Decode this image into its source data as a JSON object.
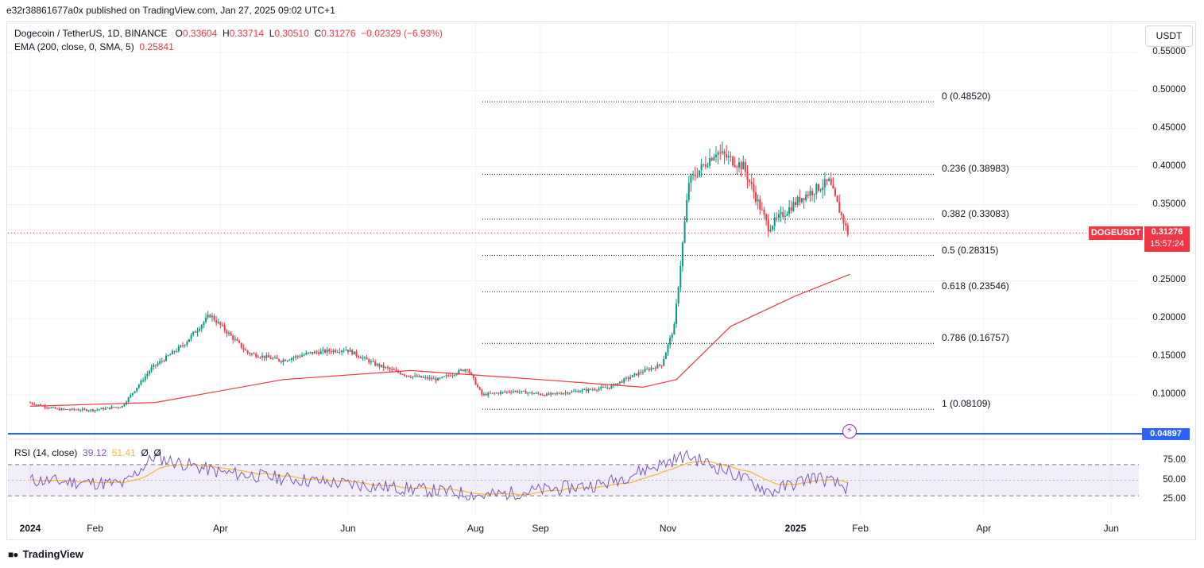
{
  "header": {
    "published_text": "e32r38861677a0x published on TradingView.com, Jan 27, 2025 09:02 UTC+1"
  },
  "legend": {
    "symbol": "Dogecoin / TetherUS, 1D, BINANCE",
    "o_label": "O",
    "o": "0.33604",
    "h_label": "H",
    "h": "0.33714",
    "l_label": "L",
    "l": "0.30510",
    "c_label": "C",
    "c": "0.31276",
    "change": "−0.02329 (−6.93%)",
    "ema_label": "EMA (200, close, 0, SMA, 5)",
    "ema_value": "0.25841"
  },
  "rsi_legend": {
    "label": "RSI (14, close)",
    "rsi": "39.12",
    "ma": "51.41",
    "extra": "Ø",
    "extra2": "Ø"
  },
  "currency": "USDT",
  "last_price": {
    "ticker": "DOGEUSDT",
    "price": "0.31276",
    "countdown": "15:57:24"
  },
  "hline_value": "0.04897",
  "price_axis": [
    "0.55000",
    "0.50000",
    "0.45000",
    "0.40000",
    "0.35000",
    "0.25000",
    "0.20000",
    "0.15000",
    "0.10000"
  ],
  "rsi_axis": [
    "75.00",
    "50.00",
    "25.00"
  ],
  "time_axis": [
    "2024",
    "Feb",
    "Apr",
    "Jun",
    "Aug",
    "Sep",
    "Nov",
    "2025",
    "Feb",
    "Apr",
    "Jun"
  ],
  "fib_levels": [
    {
      "label": "0 (0.48520)",
      "value": 0.4852
    },
    {
      "label": "0.236 (0.38983)",
      "value": 0.38983
    },
    {
      "label": "0.382 (0.33083)",
      "value": 0.33083
    },
    {
      "label": "0.5 (0.28315)",
      "value": 0.28315
    },
    {
      "label": "0.618 (0.23546)",
      "value": 0.23546
    },
    {
      "label": "0.786 (0.16757)",
      "value": 0.16757
    },
    {
      "label": "1 (0.08109)",
      "value": 0.08109
    }
  ],
  "brand": "TradingView",
  "colors": {
    "up": "#089981",
    "down": "#f23645",
    "ema": "#f23645",
    "rsi": "#7e57c2",
    "rsi_ma": "#f7b731",
    "hline": "#2962ff",
    "fib": "#131722"
  },
  "chart_data": {
    "type": "candlestick",
    "ylim": [
      0.045,
      0.57
    ],
    "series": [
      {
        "name": "Dogecoin / TetherUS",
        "dates": [
          "2024-01-01",
          "2024-01-15",
          "2024-02-01",
          "2024-02-15",
          "2024-02-29",
          "2024-03-15",
          "2024-03-28",
          "2024-04-15",
          "2024-05-01",
          "2024-05-15",
          "2024-06-01",
          "2024-06-15",
          "2024-07-01",
          "2024-07-15",
          "2024-07-29",
          "2024-08-05",
          "2024-08-20",
          "2024-09-05",
          "2024-09-20",
          "2024-10-05",
          "2024-10-20",
          "2024-10-30",
          "2024-11-05",
          "2024-11-12",
          "2024-11-25",
          "2024-12-08",
          "2024-12-20",
          "2025-01-05",
          "2025-01-18",
          "2025-01-27"
        ],
        "close": [
          0.09,
          0.081,
          0.08,
          0.085,
          0.135,
          0.165,
          0.205,
          0.155,
          0.145,
          0.155,
          0.16,
          0.14,
          0.125,
          0.12,
          0.135,
          0.1,
          0.105,
          0.1,
          0.105,
          0.11,
          0.13,
          0.14,
          0.19,
          0.38,
          0.42,
          0.4,
          0.32,
          0.36,
          0.38,
          0.31276
        ]
      },
      {
        "name": "EMA (200, close, 0, SMA, 5)",
        "dates": [
          "2024-01-01",
          "2024-03-01",
          "2024-05-01",
          "2024-07-01",
          "2024-09-01",
          "2024-10-20",
          "2024-11-05",
          "2024-12-01",
          "2025-01-01",
          "2025-01-27"
        ],
        "values": [
          0.085,
          0.09,
          0.12,
          0.132,
          0.12,
          0.11,
          0.12,
          0.19,
          0.23,
          0.25841
        ]
      },
      {
        "name": "RSI (14, close)",
        "dates": [
          "2024-01-01",
          "2024-02-15",
          "2024-02-29",
          "2024-04-01",
          "2024-06-01",
          "2024-07-20",
          "2024-08-05",
          "2024-10-01",
          "2024-11-10",
          "2024-12-01",
          "2024-12-20",
          "2025-01-10",
          "2025-01-27"
        ],
        "values": [
          50,
          45,
          80,
          60,
          45,
          35,
          30,
          45,
          82,
          60,
          35,
          55,
          39.12
        ]
      }
    ]
  }
}
